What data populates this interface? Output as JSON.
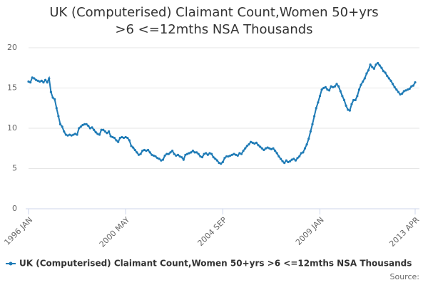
{
  "chart_data": {
    "type": "line",
    "title": "UK (Computerised) Claimant Count,Women 50+yrs >6 <=12mths NSA Thousands",
    "source": "Source:",
    "categories": [
      "1996 JAN",
      null,
      null,
      null,
      null,
      null,
      null,
      null,
      null,
      null,
      null,
      null,
      null,
      null,
      null,
      null,
      null,
      null,
      null,
      null,
      null,
      null,
      null,
      null,
      null,
      null,
      null,
      null,
      null,
      null,
      null,
      null,
      null,
      null,
      null,
      null,
      null,
      null,
      null,
      null,
      null,
      null,
      null,
      null,
      null,
      null,
      null,
      null,
      null,
      null,
      null,
      null,
      "2000 MAY",
      null,
      null,
      null,
      null,
      null,
      null,
      null,
      null,
      null,
      null,
      null,
      null,
      null,
      null,
      null,
      null,
      null,
      null,
      null,
      null,
      null,
      null,
      null,
      null,
      null,
      null,
      null,
      null,
      null,
      null,
      null,
      null,
      null,
      null,
      null,
      null,
      null,
      null,
      null,
      null,
      null,
      null,
      null,
      null,
      null,
      null,
      null,
      null,
      null,
      null,
      null,
      "2004 SEP",
      null,
      null,
      null,
      null,
      null,
      null,
      null,
      null,
      null,
      null,
      null,
      null,
      null,
      null,
      null,
      null,
      null,
      null,
      null,
      null,
      null,
      null,
      null,
      null,
      null,
      null,
      null,
      null,
      null,
      null,
      null,
      null,
      null,
      null,
      null,
      null,
      null,
      null,
      null,
      null,
      null,
      null,
      null,
      null,
      null,
      null,
      null,
      null,
      null,
      null,
      null,
      "2009 JAN",
      null,
      null,
      null,
      null,
      null,
      null,
      null,
      null,
      null,
      null,
      null,
      null,
      null,
      null,
      null,
      null,
      null,
      null,
      null,
      null,
      null,
      null,
      null,
      null,
      null,
      null,
      null,
      null,
      null,
      null,
      null,
      null,
      null,
      null,
      null,
      null,
      null,
      null,
      null,
      null,
      null,
      null,
      null,
      null,
      null,
      null,
      null,
      null,
      null,
      null,
      "2013 APR"
    ],
    "series": [
      {
        "name": "UK (Computerised) Claimant Count,Women 50+yrs >6 <=12mths NSA Thousands",
        "color": "#1f7bb6",
        "values": [
          15.8,
          15.7,
          16.3,
          16.2,
          16.0,
          15.9,
          15.8,
          15.9,
          15.7,
          16.0,
          15.7,
          16.2,
          14.5,
          13.8,
          13.6,
          12.5,
          11.5,
          10.5,
          10.2,
          9.6,
          9.2,
          9.1,
          9.2,
          9.1,
          9.2,
          9.3,
          9.2,
          10.0,
          10.2,
          10.4,
          10.5,
          10.5,
          10.3,
          10.0,
          10.1,
          9.8,
          9.5,
          9.3,
          9.2,
          9.8,
          9.8,
          9.6,
          9.4,
          9.6,
          9.0,
          8.9,
          8.8,
          8.5,
          8.3,
          8.8,
          8.9,
          8.8,
          8.9,
          8.8,
          8.5,
          7.8,
          7.6,
          7.3,
          7.0,
          6.7,
          6.8,
          7.2,
          7.3,
          7.2,
          7.3,
          7.0,
          6.7,
          6.6,
          6.5,
          6.3,
          6.2,
          6.0,
          6.1,
          6.6,
          6.8,
          6.8,
          7.0,
          7.2,
          6.8,
          6.6,
          6.7,
          6.5,
          6.4,
          6.1,
          6.7,
          6.8,
          6.9,
          7.0,
          7.2,
          7.0,
          7.0,
          6.8,
          6.5,
          6.4,
          6.8,
          6.9,
          6.7,
          6.9,
          6.8,
          6.4,
          6.2,
          6.0,
          5.7,
          5.6,
          5.8,
          6.3,
          6.5,
          6.5,
          6.6,
          6.7,
          6.8,
          6.7,
          6.6,
          6.9,
          6.8,
          7.2,
          7.5,
          7.8,
          8.0,
          8.3,
          8.2,
          8.1,
          8.2,
          7.9,
          7.7,
          7.5,
          7.3,
          7.5,
          7.6,
          7.5,
          7.4,
          7.5,
          7.2,
          6.9,
          6.5,
          6.2,
          5.9,
          5.7,
          6.0,
          5.8,
          5.9,
          6.1,
          6.2,
          6.0,
          6.3,
          6.5,
          6.9,
          7.0,
          7.5,
          8.0,
          8.7,
          9.6,
          10.5,
          11.5,
          12.5,
          13.2,
          14.0,
          14.8,
          15.0,
          15.1,
          14.8,
          14.7,
          15.2,
          15.1,
          15.2,
          15.5,
          15.2,
          14.6,
          14.0,
          13.5,
          12.8,
          12.3,
          12.2,
          13.0,
          13.5,
          13.5,
          14.0,
          14.8,
          15.4,
          15.8,
          16.2,
          16.8,
          17.2,
          17.9,
          17.6,
          17.4,
          17.9,
          18.1,
          17.8,
          17.5,
          17.1,
          16.9,
          16.5,
          16.2,
          15.9,
          15.5,
          15.1,
          14.8,
          14.5,
          14.2,
          14.3,
          14.6,
          14.7,
          14.8,
          14.9,
          15.2,
          15.3,
          15.7
        ]
      }
    ],
    "ylim": [
      0,
      20
    ],
    "yticks": [
      0,
      5,
      10,
      15,
      20
    ],
    "grid": true
  }
}
